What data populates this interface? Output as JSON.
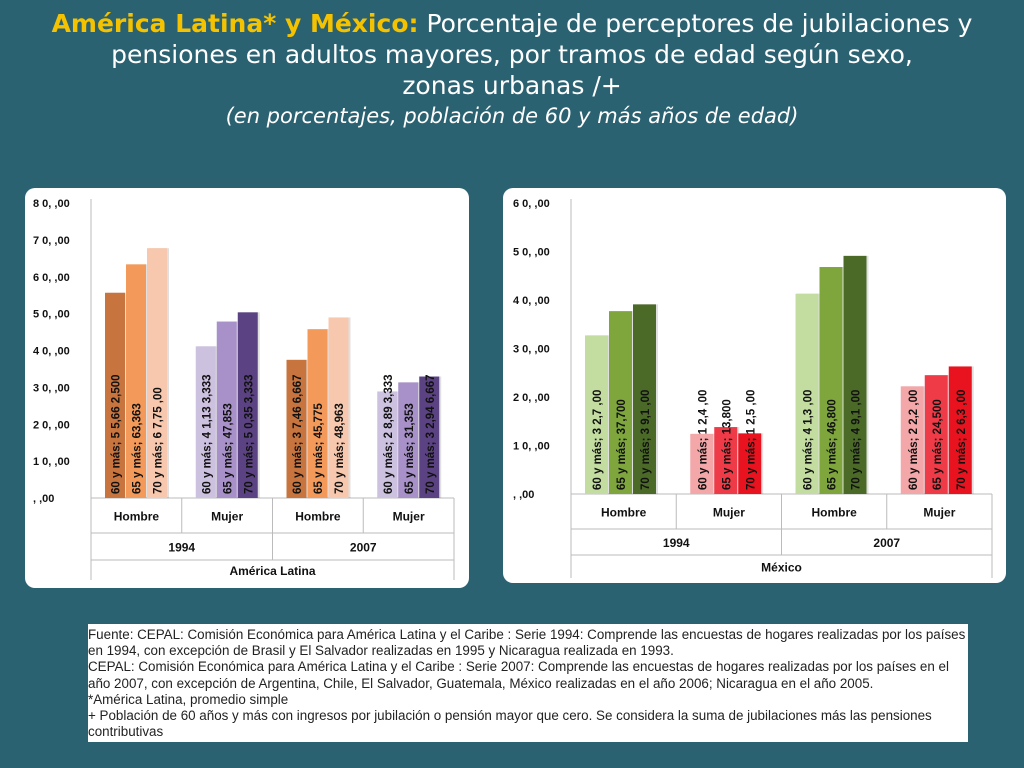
{
  "title": {
    "bold": "América Latina* y México:",
    "rest_line1": " Porcentaje de perceptores de jubilaciones y",
    "line2": "pensiones en adultos mayores, por tramos de edad según sexo,",
    "line3": "zonas urbanas /+",
    "subtitle": "(en porcentajes, población de 60 y más años de edad)"
  },
  "chart_data": [
    {
      "type": "bar",
      "title": "",
      "region_label": "América Latina",
      "years": [
        "1994",
        "2007"
      ],
      "categories": [
        "Hombre",
        "Mujer",
        "Hombre",
        "Mujer"
      ],
      "y_tick_labels": [
        ", ,00",
        "1 0, ,00",
        "2 0, ,00",
        "3 0, ,00",
        "4 0, ,00",
        "5 0, ,00",
        "6 0, ,00",
        "7 0, ,00",
        "8 0, ,00"
      ],
      "ylim": [
        0,
        80
      ],
      "series_label_prefixes": [
        "60 y más",
        "65 y más",
        "70 y más"
      ],
      "values": [
        [
          55.66,
          63.363,
          67.75
        ],
        [
          41.133,
          47.853,
          50.353
        ],
        [
          37.467,
          45.775,
          48.963
        ],
        [
          28.893,
          31.353,
          32.947
        ]
      ],
      "data_labels": [
        [
          "60 y más; 5 5,66 2,500",
          "65 y más; 63,363",
          "70 y más; 6 7,75 ,00"
        ],
        [
          "60 y más; 4 1,13 3,333",
          "65 y más; 47,853",
          "70 y más; 5 0,35 3,333"
        ],
        [
          "60 y más; 3 7,46 6,667",
          "65 y más; 45,775",
          "70 y más; 48,963"
        ],
        [
          "60 y más; 2 8,89 3,333",
          "65 y más; 31,353",
          "70 y más; 3 2,94 6,667"
        ]
      ],
      "colors": [
        [
          "#c8743f",
          "#f39a5a",
          "#f8c8ae"
        ],
        [
          "#cdc1e0",
          "#a791c8",
          "#5b4282"
        ],
        [
          "#c8743f",
          "#f39a5a",
          "#f8c8ae"
        ],
        [
          "#cdc1e0",
          "#a791c8",
          "#5b4282"
        ]
      ]
    },
    {
      "type": "bar",
      "title": "",
      "region_label": "México",
      "years": [
        "1994",
        "2007"
      ],
      "categories": [
        "Hombre",
        "Mujer",
        "Hombre",
        "Mujer"
      ],
      "y_tick_labels": [
        ", ,00",
        "1 0, ,00",
        "2 0, ,00",
        "3 0, ,00",
        "4 0, ,00",
        "5 0, ,00",
        "6 0, ,00"
      ],
      "ylim": [
        0,
        60
      ],
      "series_label_prefixes": [
        "60 y más",
        "65 y más",
        "70 y más"
      ],
      "values": [
        [
          32.7,
          37.7,
          39.1
        ],
        [
          12.4,
          13.8,
          12.5
        ],
        [
          41.3,
          46.8,
          49.1
        ],
        [
          22.2,
          24.5,
          26.3
        ]
      ],
      "data_labels": [
        [
          "60 y más; 3 2,7 ,00",
          "65 y más; 37,700",
          "70 y más; 3 9,1 ,00"
        ],
        [
          "60 y más; 1 2,4 ,00",
          "65 y más; 13,800",
          "70 y más; 1 2,5 ,00"
        ],
        [
          "60 y más; 4 1,3 ,00",
          "65 y más; 46,800",
          "70 y más; 4 9,1 ,00"
        ],
        [
          "60 y más; 2 2,2 ,00",
          "65 y más; 24,500",
          "70 y más; 2 6,3 ,00"
        ]
      ],
      "colors": [
        [
          "#c3dca0",
          "#7ea63d",
          "#4b6a28"
        ],
        [
          "#f4a7a9",
          "#ef3b48",
          "#e8131f"
        ],
        [
          "#c3dca0",
          "#7ea63d",
          "#4b6a28"
        ],
        [
          "#f4a7a9",
          "#ef3b48",
          "#e8131f"
        ]
      ]
    }
  ],
  "footer": {
    "lines": [
      "Fuente: CEPAL: Comisión Económica para América Latina y el Caribe : Serie 1994: Comprende las encuestas de hogares realizadas por los países en 1994, con excepción de Brasil y El Salvador realizadas en 1995 y Nicaragua realizada en 1993.",
      "CEPAL: Comisión Económica para América Latina y el Caribe : Serie 2007: Comprende las encuestas de hogares realizadas por los países en el año 2007, con excepción de Argentina, Chile, El Salvador, Guatemala, México realizadas en el año 2006; Nicaragua en el año 2005.",
      "*América Latina, promedio simple",
      "+ Población de 60 años y más con ingresos por jubilación o pensión mayor que cero. Se considera la suma de jubilaciones más las pensiones contributivas"
    ]
  }
}
